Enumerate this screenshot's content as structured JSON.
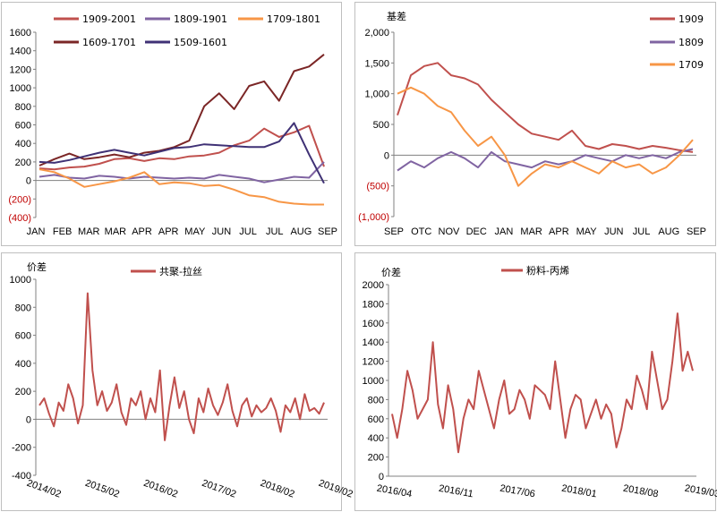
{
  "chart_data": [
    {
      "type": "line",
      "ylim": [
        -400,
        1600
      ],
      "yticks": [
        "1600",
        "1400",
        "1200",
        "1000",
        "800",
        "600",
        "400",
        "200",
        "0",
        "(200)",
        "(400)"
      ],
      "xticks": [
        "JAN",
        "FEB",
        "MAR",
        "MAR",
        "APR",
        "APR",
        "MAY",
        "JUN",
        "JUL",
        "JUL",
        "AUG",
        "SEP"
      ],
      "legend": "top",
      "series": [
        {
          "name": "1909-2001",
          "color": "#c0504d",
          "values": [
            130,
            120,
            140,
            150,
            180,
            230,
            240,
            210,
            240,
            230,
            260,
            270,
            300,
            380,
            430,
            560,
            470,
            520,
            590,
            150
          ]
        },
        {
          "name": "1809-1901",
          "color": "#8064a2",
          "values": [
            40,
            60,
            30,
            20,
            50,
            40,
            20,
            40,
            30,
            20,
            30,
            20,
            60,
            40,
            20,
            -20,
            10,
            40,
            30,
            200
          ]
        },
        {
          "name": "1709-1801",
          "color": "#f79646",
          "values": [
            120,
            90,
            20,
            -70,
            -40,
            -10,
            30,
            90,
            -40,
            -20,
            -30,
            -60,
            -50,
            -100,
            -160,
            -180,
            -230,
            -250,
            -260,
            -260
          ]
        },
        {
          "name": "1609-1701",
          "color": "#7b2626",
          "values": [
            160,
            230,
            290,
            230,
            250,
            280,
            250,
            300,
            320,
            360,
            430,
            800,
            940,
            770,
            1020,
            1070,
            860,
            1180,
            1230,
            1360
          ]
        },
        {
          "name": "1509-1601",
          "color": "#3f3175",
          "values": [
            200,
            190,
            220,
            260,
            300,
            330,
            300,
            270,
            310,
            350,
            360,
            390,
            380,
            370,
            360,
            360,
            420,
            620,
            280,
            -30
          ]
        }
      ]
    },
    {
      "type": "line",
      "ylabel": "基差",
      "ylim": [
        -1000,
        2000
      ],
      "yticks": [
        "2,000",
        "1,500",
        "1,000",
        "500",
        "0",
        "(500)",
        "(1,000)"
      ],
      "xticks": [
        "SEP",
        "OTC",
        "NOV",
        "DEC",
        "JAN",
        "MAR",
        "APR",
        "MAY",
        "JUN",
        "JUL",
        "AUG",
        "SEP"
      ],
      "legend": "top-right",
      "series": [
        {
          "name": "1909",
          "color": "#c0504d",
          "values": [
            650,
            1300,
            1450,
            1500,
            1300,
            1250,
            1150,
            900,
            700,
            500,
            350,
            300,
            250,
            400,
            150,
            100,
            180,
            150,
            100,
            150,
            120,
            80,
            50
          ]
        },
        {
          "name": "1809",
          "color": "#8064a2",
          "values": [
            -250,
            -100,
            -200,
            -50,
            50,
            -50,
            -200,
            50,
            -100,
            -150,
            -200,
            -100,
            -150,
            -100,
            0,
            -50,
            -100,
            0,
            -50,
            0,
            -50,
            50,
            100
          ]
        },
        {
          "name": "1709",
          "color": "#f79646",
          "values": [
            1000,
            1100,
            1000,
            800,
            700,
            400,
            150,
            300,
            0,
            -500,
            -300,
            -150,
            -200,
            -100,
            -200,
            -300,
            -100,
            -200,
            -150,
            -300,
            -200,
            0,
            250
          ]
        }
      ]
    },
    {
      "type": "line",
      "ylabel": "价差",
      "ylim": [
        -400,
        1000
      ],
      "yticks": [
        "1000",
        "800",
        "600",
        "400",
        "200",
        "0",
        "-200",
        "-400"
      ],
      "xticks": [
        "2014/02",
        "2015/02",
        "2016/02",
        "2017/02",
        "2018/02",
        "2019/02"
      ],
      "legend": "top",
      "series": [
        {
          "name": "共聚-拉丝",
          "color": "#c0504d",
          "values": [
            100,
            150,
            40,
            -50,
            120,
            60,
            250,
            150,
            -30,
            100,
            900,
            350,
            100,
            200,
            60,
            120,
            250,
            50,
            -40,
            150,
            100,
            200,
            0,
            150,
            50,
            350,
            -150,
            100,
            300,
            80,
            200,
            0,
            -100,
            150,
            50,
            220,
            100,
            30,
            120,
            250,
            60,
            -50,
            100,
            150,
            20,
            100,
            50,
            80,
            150,
            60,
            -90,
            100,
            50,
            150,
            0,
            180,
            60,
            80,
            40,
            120
          ]
        }
      ]
    },
    {
      "type": "line",
      "ylabel": "价差",
      "ylim": [
        0,
        2000
      ],
      "yticks": [
        "2000",
        "1800",
        "1600",
        "1400",
        "1200",
        "1000",
        "800",
        "600",
        "400",
        "200",
        "0"
      ],
      "xticks": [
        "2016/04",
        "2016/11",
        "2017/06",
        "2018/01",
        "2018/08",
        "2019/03"
      ],
      "legend": "top",
      "series": [
        {
          "name": "粉料-丙烯",
          "color": "#c0504d",
          "values": [
            650,
            400,
            700,
            1100,
            900,
            600,
            700,
            800,
            1400,
            750,
            500,
            950,
            700,
            250,
            600,
            800,
            700,
            1100,
            900,
            700,
            500,
            800,
            1000,
            650,
            700,
            900,
            800,
            600,
            950,
            900,
            850,
            700,
            1200,
            800,
            400,
            700,
            850,
            800,
            500,
            650,
            800,
            600,
            750,
            650,
            300,
            500,
            800,
            700,
            1050,
            900,
            700,
            1300,
            1000,
            700,
            800,
            1200,
            1700,
            1100,
            1300,
            1100
          ]
        }
      ]
    }
  ]
}
